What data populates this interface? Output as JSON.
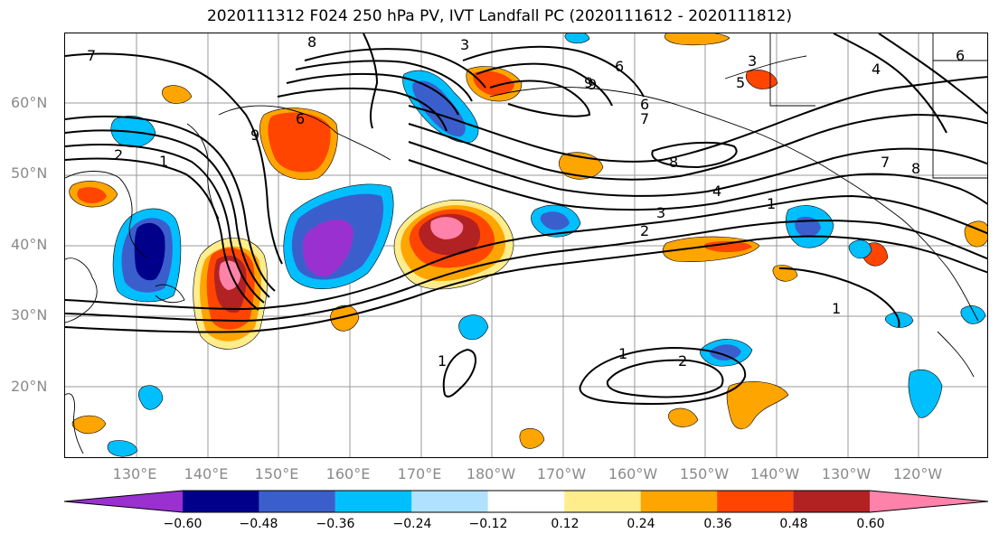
{
  "title": "2020111312 F024 250 hPa PV, IVT Landfall PC (2020111612 - 2020111812)",
  "lat_labels": [
    "60°N",
    "50°N",
    "40°N",
    "30°N",
    "20°N"
  ],
  "lon_labels": [
    "130°E",
    "140°E",
    "150°E",
    "160°E",
    "170°E",
    "180°W",
    "170°W",
    "160°W",
    "150°W",
    "140°W",
    "130°W",
    "120°W"
  ],
  "contour_labels": [
    "7",
    "8",
    "3",
    "9",
    "5",
    "4",
    "6",
    "2",
    "1",
    "8",
    "3",
    "4",
    "2",
    "1",
    "7",
    "8",
    "1",
    "1",
    "2",
    "1",
    "9",
    "6",
    "7",
    "3",
    "6",
    "9",
    "6"
  ],
  "colorbar": {
    "colors": [
      "#9b30d0",
      "#00008b",
      "#3a5fcd",
      "#00bfff",
      "#b0e2ff",
      "#ffffff",
      "#ffec8b",
      "#ffa500",
      "#ff4500",
      "#b22222",
      "#ff82ab"
    ],
    "labels": [
      "−0.60",
      "−0.48",
      "−0.36",
      "−0.24",
      "−0.12",
      "0.12",
      "0.24",
      "0.36",
      "0.48",
      "0.60"
    ]
  }
}
